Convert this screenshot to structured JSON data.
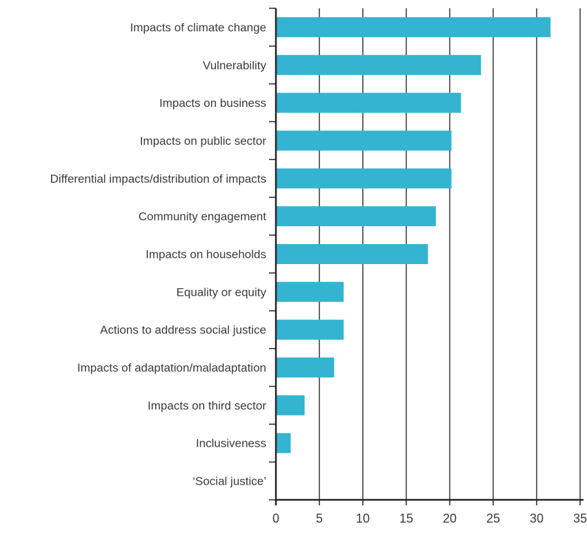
{
  "chart_data": {
    "type": "bar",
    "orientation": "horizontal",
    "title": "",
    "xlabel": "",
    "ylabel": "",
    "xlim": [
      0,
      35
    ],
    "xticks": [
      0,
      5,
      10,
      15,
      20,
      25,
      30,
      35
    ],
    "grid": "vertical",
    "bar_color": "#34b4d0",
    "categories": [
      "Impacts of climate change",
      "Vulnerability",
      "Impacts on business",
      "Impacts on public sector",
      "Differential impacts/distribution of impacts",
      "Community engagement",
      "Impacts on households",
      "Equality or equity",
      "Actions to address social justice",
      "Impacts of adaptation/maladaptation",
      "Impacts on third sector",
      "Inclusiveness",
      "‘Social justice’"
    ],
    "values": [
      31.6,
      23.6,
      21.3,
      20.2,
      20.2,
      18.4,
      17.5,
      7.8,
      7.8,
      6.7,
      3.3,
      1.7,
      0
    ]
  }
}
